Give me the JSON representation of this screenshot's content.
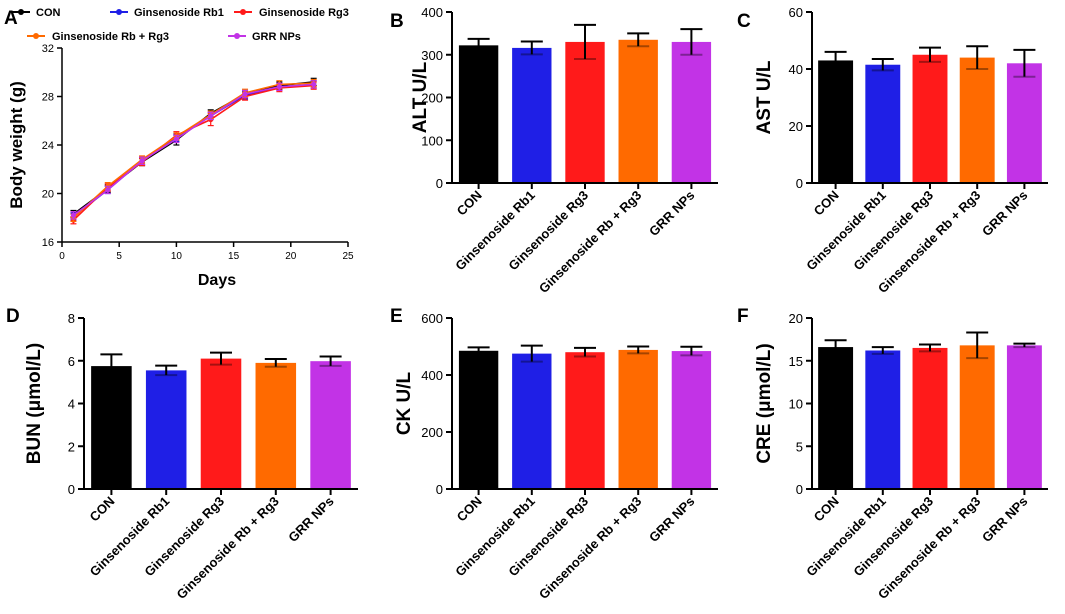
{
  "colors": {
    "CON": "#000000",
    "Ginsenoside Rb1": "#1f1fe6",
    "Ginsenoside Rg3": "#ff1a1a",
    "Ginsenoside Rb + Rg3": "#ff6a00",
    "GRR NPs": "#c233e6"
  },
  "chart_data": [
    {
      "panel": "A",
      "type": "line",
      "xlabel": "Days",
      "ylabel": "Body weight (g)",
      "xlim": [
        0,
        25
      ],
      "ylim": [
        16,
        32
      ],
      "xticks": [
        0,
        5,
        10,
        15,
        20,
        25
      ],
      "yticks": [
        16,
        20,
        24,
        28,
        32
      ],
      "x": [
        1,
        4,
        7,
        10,
        13,
        16,
        19,
        22
      ],
      "legend": [
        "CON",
        "Ginsenoside Rb1",
        "Ginsenoside Rg3",
        "Ginsenoside Rb + Rg3",
        "GRR NPs"
      ],
      "series": [
        {
          "name": "CON",
          "values": [
            18.3,
            20.4,
            22.6,
            24.4,
            26.6,
            28.2,
            28.9,
            29.2
          ],
          "errors": [
            0.3,
            0.3,
            0.3,
            0.4,
            0.3,
            0.3,
            0.3,
            0.3
          ]
        },
        {
          "name": "Ginsenoside Rb1",
          "values": [
            18.1,
            20.3,
            22.7,
            24.6,
            26.4,
            28.1,
            28.8,
            29.0
          ],
          "errors": [
            0.3,
            0.3,
            0.3,
            0.3,
            0.3,
            0.3,
            0.3,
            0.3
          ]
        },
        {
          "name": "Ginsenoside Rg3",
          "values": [
            17.8,
            20.5,
            22.6,
            24.8,
            26.1,
            28.0,
            28.7,
            28.9
          ],
          "errors": [
            0.3,
            0.3,
            0.3,
            0.3,
            0.5,
            0.3,
            0.3,
            0.3
          ]
        },
        {
          "name": "Ginsenoside Rb + Rg3",
          "values": [
            18.0,
            20.6,
            22.8,
            24.7,
            26.5,
            28.3,
            29.0,
            29.1
          ],
          "errors": [
            0.3,
            0.3,
            0.3,
            0.3,
            0.3,
            0.3,
            0.3,
            0.3
          ]
        },
        {
          "name": "GRR NPs",
          "values": [
            18.2,
            20.3,
            22.7,
            24.5,
            26.4,
            28.2,
            28.8,
            29.0
          ],
          "errors": [
            0.3,
            0.3,
            0.3,
            0.3,
            0.3,
            0.3,
            0.3,
            0.3
          ]
        }
      ]
    },
    {
      "panel": "B",
      "type": "bar",
      "ylabel": "ALT U/L",
      "ylim": [
        0,
        400
      ],
      "yticks": [
        0,
        100,
        200,
        300,
        400
      ],
      "categories": [
        "CON",
        "Ginsenoside Rb1",
        "Ginsenoside Rg3",
        "Ginsenoside Rb + Rg3",
        "GRR NPs"
      ],
      "values": [
        322,
        316,
        330,
        335,
        330
      ],
      "errors": [
        15,
        15,
        40,
        15,
        30
      ]
    },
    {
      "panel": "C",
      "type": "bar",
      "ylabel": "AST U/L",
      "ylim": [
        0,
        60
      ],
      "yticks": [
        0,
        20,
        40,
        60
      ],
      "categories": [
        "CON",
        "Ginsenoside Rb1",
        "Ginsenoside Rg3",
        "Ginsenoside Rb + Rg3",
        "GRR NPs"
      ],
      "values": [
        43,
        41.5,
        45,
        44,
        42
      ],
      "errors": [
        3,
        2,
        2.5,
        4,
        4.7
      ]
    },
    {
      "panel": "D",
      "type": "bar",
      "ylabel": "BUN (μmol/L)",
      "ylim": [
        0,
        8
      ],
      "yticks": [
        0,
        2,
        4,
        6,
        8
      ],
      "categories": [
        "CON",
        "Ginsenoside Rb1",
        "Ginsenoside Rg3",
        "Ginsenoside Rb + Rg3",
        "GRR NPs"
      ],
      "values": [
        5.75,
        5.55,
        6.1,
        5.9,
        5.98
      ],
      "errors": [
        0.55,
        0.22,
        0.28,
        0.18,
        0.22
      ]
    },
    {
      "panel": "E",
      "type": "bar",
      "ylabel": "CK U/L",
      "ylim": [
        0,
        600
      ],
      "yticks": [
        0,
        200,
        400,
        600
      ],
      "categories": [
        "CON",
        "Ginsenoside Rb1",
        "Ginsenoside Rg3",
        "Ginsenoside Rb + Rg3",
        "GRR NPs"
      ],
      "values": [
        485,
        475,
        480,
        488,
        484
      ],
      "errors": [
        12,
        28,
        15,
        12,
        15
      ]
    },
    {
      "panel": "F",
      "type": "bar",
      "ylabel": "CRE (μmol/L)",
      "ylim": [
        0,
        20
      ],
      "yticks": [
        0,
        5,
        10,
        15,
        20
      ],
      "categories": [
        "CON",
        "Ginsenoside Rb1",
        "Ginsenoside Rg3",
        "Ginsenoside Rb + Rg3",
        "GRR NPs"
      ],
      "values": [
        16.6,
        16.2,
        16.5,
        16.8,
        16.8
      ],
      "errors": [
        0.8,
        0.4,
        0.4,
        1.5,
        0.2
      ]
    }
  ]
}
